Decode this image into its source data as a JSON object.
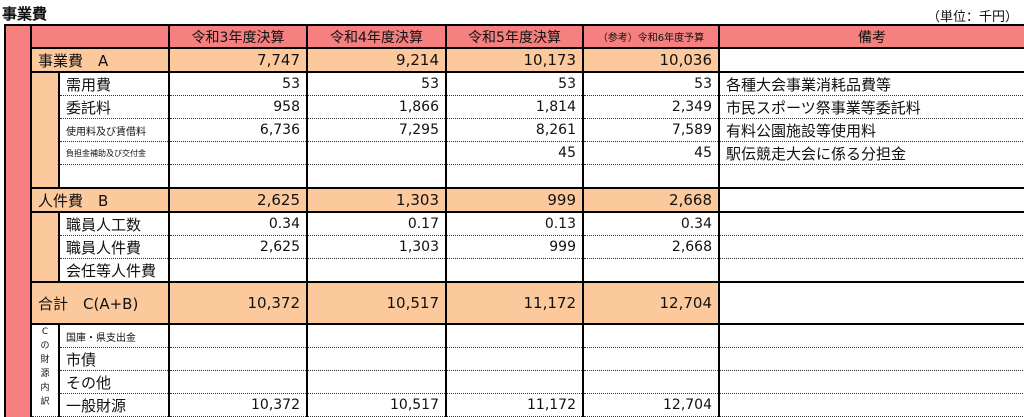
{
  "title": "事業費",
  "unit": "（単位：千円）",
  "header": {
    "columns": [
      "令和3年度決算",
      "令和4年度決算",
      "令和5年度決算",
      "（参考）令和6年度予算"
    ],
    "remarks": "備考"
  },
  "colors": {
    "header": "#f67f7f",
    "subtotal": "#fcc99c"
  },
  "sections": [
    {
      "label": "事業費　A",
      "values": [
        "7,747",
        "9,214",
        "10,173",
        "10,036"
      ],
      "remark": "",
      "items": [
        {
          "label": "需用費",
          "values": [
            "53",
            "53",
            "53",
            "53"
          ],
          "remark": "各種大会事業消耗品費等"
        },
        {
          "label": "委託料",
          "values": [
            "958",
            "1,866",
            "1,814",
            "2,349"
          ],
          "remark": "市民スポーツ祭事業等委託料"
        },
        {
          "label": "使用料及び賃借料",
          "values": [
            "6,736",
            "7,295",
            "8,261",
            "7,589"
          ],
          "remark": "有料公園施設等使用料"
        },
        {
          "label": "負担金補助及び交付金",
          "values": [
            "",
            "",
            "45",
            "45"
          ],
          "remark": "駅伝競走大会に係る分担金"
        },
        {
          "label": "",
          "values": [
            "",
            "",
            "",
            ""
          ],
          "remark": ""
        }
      ]
    },
    {
      "label": "人件費　B",
      "values": [
        "2,625",
        "1,303",
        "999",
        "2,668"
      ],
      "remark": "",
      "items": [
        {
          "label": "職員人工数",
          "values": [
            "0.34",
            "0.17",
            "0.13",
            "0.34"
          ],
          "remark": ""
        },
        {
          "label": "職員人件費",
          "values": [
            "2,625",
            "1,303",
            "999",
            "2,668"
          ],
          "remark": ""
        },
        {
          "label": "会任等人件費",
          "values": [
            "",
            "",
            "",
            ""
          ],
          "remark": ""
        }
      ]
    }
  ],
  "total": {
    "label": "合計　C(A+B)",
    "values": [
      "10,372",
      "10,517",
      "11,172",
      "12,704"
    ],
    "remark": ""
  },
  "funding": {
    "group_label": "Cの財源内訳",
    "items": [
      {
        "label": "国庫・県支出金",
        "values": [
          "",
          "",
          "",
          ""
        ],
        "remark": ""
      },
      {
        "label": "市債",
        "values": [
          "",
          "",
          "",
          ""
        ],
        "remark": ""
      },
      {
        "label": "その他",
        "values": [
          "",
          "",
          "",
          ""
        ],
        "remark": ""
      },
      {
        "label": "一般財源",
        "values": [
          "10,372",
          "10,517",
          "11,172",
          "12,704"
        ],
        "remark": ""
      }
    ]
  }
}
